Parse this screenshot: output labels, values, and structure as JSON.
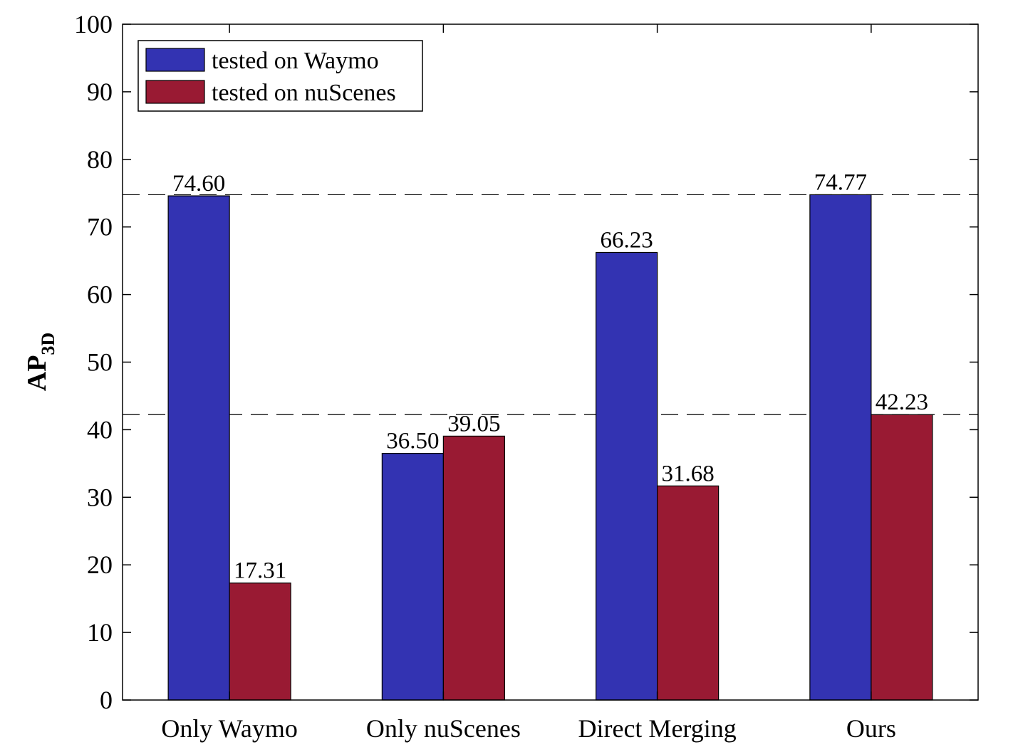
{
  "chart_data": {
    "type": "bar",
    "categories": [
      "Only Waymo",
      "Only nuScenes",
      "Direct Merging",
      "Ours"
    ],
    "series": [
      {
        "name": "tested on Waymo",
        "color": "#3333b2",
        "values": [
          74.6,
          36.5,
          66.23,
          74.77
        ],
        "labels": [
          "74.60",
          "36.50",
          "66.23",
          "74.77"
        ]
      },
      {
        "name": "tested on nuScenes",
        "color": "#991a33",
        "values": [
          17.31,
          39.05,
          31.68,
          42.23
        ],
        "labels": [
          "17.31",
          "39.05",
          "31.68",
          "42.23"
        ]
      }
    ],
    "ylabel": "AP",
    "ylabel_sub": "3D",
    "ylim": [
      0,
      100
    ],
    "yticks": [
      "0",
      "10",
      "20",
      "30",
      "40",
      "50",
      "60",
      "70",
      "80",
      "90",
      "100"
    ],
    "reference_lines": [
      74.77,
      42.23
    ],
    "legend_position": "top-left",
    "grid": false
  }
}
